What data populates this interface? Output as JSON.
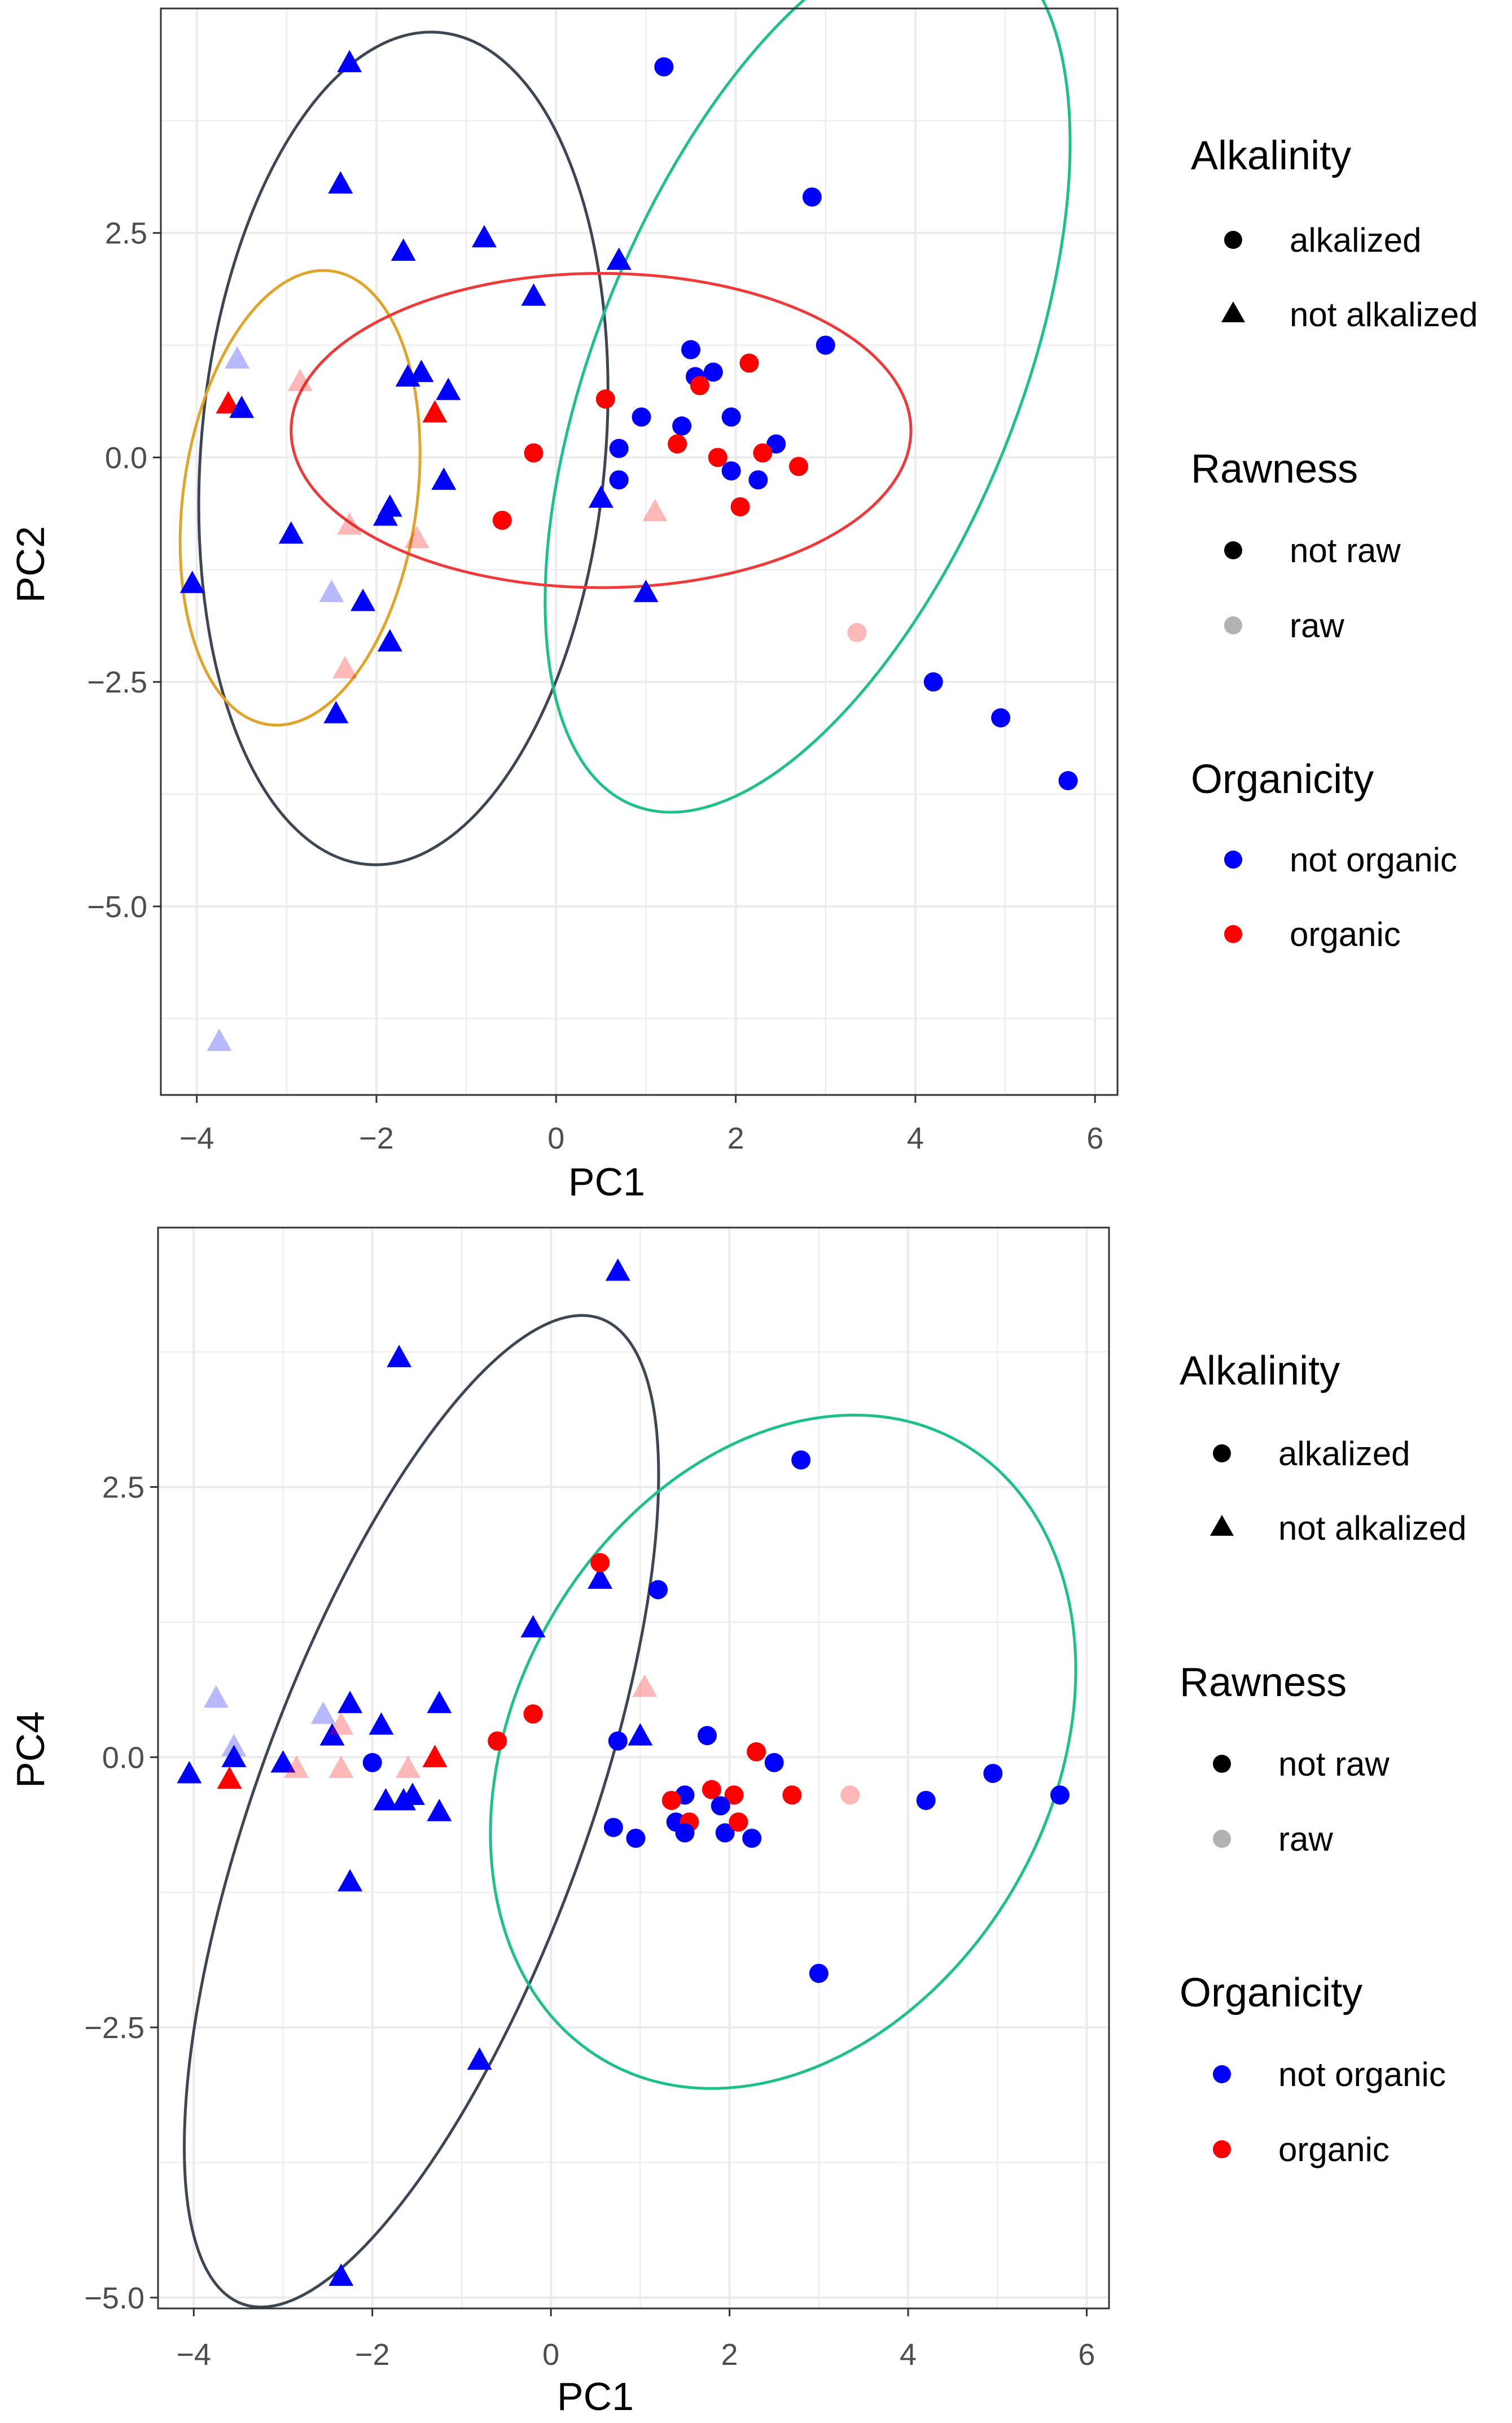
{
  "colors": {
    "not_organic": "#0000FF",
    "organic": "#FF0000",
    "ellipse_dark": "#3d4653",
    "ellipse_green": "#1ec08a",
    "ellipse_gold": "#e0a428",
    "ellipse_red": "#f03a3a",
    "grid": "#ebebeb",
    "panel_border": "#333333"
  },
  "chart_data": [
    {
      "type": "scatter",
      "xlabel": "PC1",
      "ylabel": "PC2",
      "xlim": [
        -4.4,
        6.25
      ],
      "ylim": [
        -7.1,
        5.0
      ],
      "xticks": [
        -4,
        -2,
        0,
        2,
        4,
        6
      ],
      "yticks": [
        -5.0,
        -2.5,
        0.0,
        2.5
      ],
      "xtick_labels": [
        "−4",
        "−2",
        "0",
        "2",
        "4",
        "6"
      ],
      "ytick_labels": [
        "−5.0",
        "−2.5",
        "0.0",
        "2.5"
      ],
      "grid": true,
      "ellipses": [
        {
          "color": "ellipse_dark",
          "cx": -1.7,
          "cy": 0.1,
          "rx": 2.25,
          "ry": 4.65,
          "angle": 5
        },
        {
          "color": "ellipse_green",
          "cx": 2.8,
          "cy": 0.95,
          "rx": 2.35,
          "ry": 5.2,
          "angle": 22
        },
        {
          "color": "ellipse_gold",
          "cx": -2.85,
          "cy": -0.45,
          "rx": 1.3,
          "ry": 2.55,
          "angle": 8
        },
        {
          "color": "ellipse_red",
          "cx": 0.5,
          "cy": 0.3,
          "rx": 3.45,
          "ry": 1.75,
          "angle": 0
        }
      ],
      "points": [
        {
          "x": -2.3,
          "y": 4.4,
          "alk": "not",
          "org": "not",
          "raw": "not"
        },
        {
          "x": -2.4,
          "y": 3.05,
          "alk": "not",
          "org": "not",
          "raw": "not"
        },
        {
          "x": -1.7,
          "y": 2.3,
          "alk": "not",
          "org": "not",
          "raw": "not"
        },
        {
          "x": -0.8,
          "y": 2.45,
          "alk": "not",
          "org": "not",
          "raw": "not"
        },
        {
          "x": 0.7,
          "y": 2.2,
          "alk": "not",
          "org": "not",
          "raw": "not"
        },
        {
          "x": -0.25,
          "y": 1.8,
          "alk": "not",
          "org": "not",
          "raw": "not"
        },
        {
          "x": -3.55,
          "y": 1.1,
          "alk": "not",
          "org": "not",
          "raw": "raw"
        },
        {
          "x": -2.85,
          "y": 0.85,
          "alk": "not",
          "org": "org",
          "raw": "raw"
        },
        {
          "x": -3.65,
          "y": 0.6,
          "alk": "not",
          "org": "org",
          "raw": "not"
        },
        {
          "x": -3.5,
          "y": 0.55,
          "alk": "not",
          "org": "not",
          "raw": "not"
        },
        {
          "x": -1.65,
          "y": 0.9,
          "alk": "not",
          "org": "not",
          "raw": "not"
        },
        {
          "x": -1.5,
          "y": 0.95,
          "alk": "not",
          "org": "not",
          "raw": "not"
        },
        {
          "x": -1.2,
          "y": 0.75,
          "alk": "not",
          "org": "not",
          "raw": "not"
        },
        {
          "x": -1.35,
          "y": 0.5,
          "alk": "not",
          "org": "org",
          "raw": "not"
        },
        {
          "x": -1.25,
          "y": -0.25,
          "alk": "not",
          "org": "not",
          "raw": "not"
        },
        {
          "x": -2.3,
          "y": -0.75,
          "alk": "not",
          "org": "org",
          "raw": "raw"
        },
        {
          "x": -1.9,
          "y": -0.65,
          "alk": "not",
          "org": "not",
          "raw": "not"
        },
        {
          "x": -1.85,
          "y": -0.55,
          "alk": "not",
          "org": "not",
          "raw": "not"
        },
        {
          "x": -1.55,
          "y": -0.9,
          "alk": "not",
          "org": "org",
          "raw": "raw"
        },
        {
          "x": -2.95,
          "y": -0.85,
          "alk": "not",
          "org": "not",
          "raw": "not"
        },
        {
          "x": -4.05,
          "y": -1.4,
          "alk": "not",
          "org": "not",
          "raw": "not"
        },
        {
          "x": -2.5,
          "y": -1.5,
          "alk": "not",
          "org": "not",
          "raw": "raw"
        },
        {
          "x": -2.15,
          "y": -1.6,
          "alk": "not",
          "org": "not",
          "raw": "not"
        },
        {
          "x": -1.85,
          "y": -2.05,
          "alk": "not",
          "org": "not",
          "raw": "not"
        },
        {
          "x": -2.35,
          "y": -2.35,
          "alk": "not",
          "org": "org",
          "raw": "raw"
        },
        {
          "x": -2.45,
          "y": -2.85,
          "alk": "not",
          "org": "not",
          "raw": "not"
        },
        {
          "x": -3.75,
          "y": -6.5,
          "alk": "not",
          "org": "not",
          "raw": "raw"
        },
        {
          "x": 0.5,
          "y": -0.45,
          "alk": "not",
          "org": "not",
          "raw": "not"
        },
        {
          "x": 1.1,
          "y": -0.6,
          "alk": "not",
          "org": "org",
          "raw": "raw"
        },
        {
          "x": 1.0,
          "y": -1.5,
          "alk": "not",
          "org": "not",
          "raw": "not"
        },
        {
          "x": 1.2,
          "y": 4.35,
          "alk": "alk",
          "org": "not",
          "raw": "not"
        },
        {
          "x": 2.85,
          "y": 2.9,
          "alk": "alk",
          "org": "not",
          "raw": "not"
        },
        {
          "x": 3.0,
          "y": 1.25,
          "alk": "alk",
          "org": "not",
          "raw": "not"
        },
        {
          "x": 1.5,
          "y": 1.2,
          "alk": "alk",
          "org": "not",
          "raw": "not"
        },
        {
          "x": 1.55,
          "y": 0.9,
          "alk": "alk",
          "org": "not",
          "raw": "not"
        },
        {
          "x": 1.75,
          "y": 0.95,
          "alk": "alk",
          "org": "not",
          "raw": "not"
        },
        {
          "x": 1.6,
          "y": 0.8,
          "alk": "alk",
          "org": "org",
          "raw": "not"
        },
        {
          "x": 2.15,
          "y": 1.05,
          "alk": "alk",
          "org": "org",
          "raw": "not"
        },
        {
          "x": 0.55,
          "y": 0.65,
          "alk": "alk",
          "org": "org",
          "raw": "not"
        },
        {
          "x": 0.95,
          "y": 0.45,
          "alk": "alk",
          "org": "not",
          "raw": "not"
        },
        {
          "x": 1.4,
          "y": 0.35,
          "alk": "alk",
          "org": "not",
          "raw": "not"
        },
        {
          "x": 1.95,
          "y": 0.45,
          "alk": "alk",
          "org": "not",
          "raw": "not"
        },
        {
          "x": 0.7,
          "y": 0.1,
          "alk": "alk",
          "org": "not",
          "raw": "not"
        },
        {
          "x": 1.35,
          "y": 0.15,
          "alk": "alk",
          "org": "org",
          "raw": "not"
        },
        {
          "x": 1.8,
          "y": 0.0,
          "alk": "alk",
          "org": "org",
          "raw": "not"
        },
        {
          "x": 2.45,
          "y": 0.15,
          "alk": "alk",
          "org": "not",
          "raw": "not"
        },
        {
          "x": 2.3,
          "y": 0.05,
          "alk": "alk",
          "org": "org",
          "raw": "not"
        },
        {
          "x": 2.7,
          "y": -0.1,
          "alk": "alk",
          "org": "org",
          "raw": "not"
        },
        {
          "x": 1.95,
          "y": -0.15,
          "alk": "alk",
          "org": "not",
          "raw": "not"
        },
        {
          "x": 2.25,
          "y": -0.25,
          "alk": "alk",
          "org": "not",
          "raw": "not"
        },
        {
          "x": 0.7,
          "y": -0.25,
          "alk": "alk",
          "org": "not",
          "raw": "not"
        },
        {
          "x": 2.05,
          "y": -0.55,
          "alk": "alk",
          "org": "org",
          "raw": "not"
        },
        {
          "x": -0.25,
          "y": 0.05,
          "alk": "alk",
          "org": "org",
          "raw": "not"
        },
        {
          "x": -0.6,
          "y": -0.7,
          "alk": "alk",
          "org": "org",
          "raw": "not"
        },
        {
          "x": 3.35,
          "y": -1.95,
          "alk": "alk",
          "org": "org",
          "raw": "raw"
        },
        {
          "x": 4.2,
          "y": -2.5,
          "alk": "alk",
          "org": "not",
          "raw": "not"
        },
        {
          "x": 4.95,
          "y": -2.9,
          "alk": "alk",
          "org": "not",
          "raw": "not"
        },
        {
          "x": 5.7,
          "y": -3.6,
          "alk": "alk",
          "org": "not",
          "raw": "not"
        }
      ]
    },
    {
      "type": "scatter",
      "xlabel": "PC1",
      "ylabel": "PC4",
      "xlim": [
        -4.4,
        6.25
      ],
      "ylim": [
        -5.1,
        4.9
      ],
      "xticks": [
        -4,
        -2,
        0,
        2,
        4,
        6
      ],
      "yticks": [
        -5.0,
        -2.5,
        0.0,
        2.5
      ],
      "xtick_labels": [
        "−4",
        "−2",
        "0",
        "2",
        "4",
        "6"
      ],
      "ytick_labels": [
        "−5.0",
        "−2.5",
        "0.0",
        "2.5"
      ],
      "grid": true,
      "ellipses": [
        {
          "color": "ellipse_dark",
          "cx": -1.45,
          "cy": -0.5,
          "rx": 1.85,
          "ry": 4.85,
          "angle": 20
        },
        {
          "color": "ellipse_green",
          "cx": 2.6,
          "cy": 0.05,
          "rx": 3.0,
          "ry": 3.3,
          "angle": 30
        }
      ],
      "points": [
        {
          "x": 0.75,
          "y": 4.5,
          "alk": "not",
          "org": "not",
          "raw": "not"
        },
        {
          "x": -1.7,
          "y": 3.7,
          "alk": "not",
          "org": "not",
          "raw": "not"
        },
        {
          "x": 0.55,
          "y": 1.65,
          "alk": "not",
          "org": "not",
          "raw": "not"
        },
        {
          "x": -0.2,
          "y": 1.2,
          "alk": "not",
          "org": "not",
          "raw": "not"
        },
        {
          "x": 1.05,
          "y": 0.65,
          "alk": "not",
          "org": "org",
          "raw": "raw"
        },
        {
          "x": -3.75,
          "y": 0.55,
          "alk": "not",
          "org": "not",
          "raw": "raw"
        },
        {
          "x": -2.55,
          "y": 0.4,
          "alk": "not",
          "org": "not",
          "raw": "raw"
        },
        {
          "x": -2.25,
          "y": 0.5,
          "alk": "not",
          "org": "not",
          "raw": "not"
        },
        {
          "x": -2.45,
          "y": 0.2,
          "alk": "not",
          "org": "not",
          "raw": "not"
        },
        {
          "x": -2.35,
          "y": 0.3,
          "alk": "not",
          "org": "org",
          "raw": "raw"
        },
        {
          "x": -1.9,
          "y": 0.3,
          "alk": "not",
          "org": "not",
          "raw": "not"
        },
        {
          "x": -1.25,
          "y": 0.5,
          "alk": "not",
          "org": "not",
          "raw": "not"
        },
        {
          "x": -3.55,
          "y": 0.1,
          "alk": "not",
          "org": "not",
          "raw": "raw"
        },
        {
          "x": -3.55,
          "y": 0.0,
          "alk": "not",
          "org": "not",
          "raw": "not"
        },
        {
          "x": -4.05,
          "y": -0.15,
          "alk": "not",
          "org": "not",
          "raw": "not"
        },
        {
          "x": -3.6,
          "y": -0.2,
          "alk": "not",
          "org": "org",
          "raw": "not"
        },
        {
          "x": -3.0,
          "y": -0.05,
          "alk": "not",
          "org": "not",
          "raw": "not"
        },
        {
          "x": -2.85,
          "y": -0.1,
          "alk": "not",
          "org": "org",
          "raw": "raw"
        },
        {
          "x": -2.35,
          "y": -0.1,
          "alk": "not",
          "org": "org",
          "raw": "raw"
        },
        {
          "x": -1.6,
          "y": -0.1,
          "alk": "not",
          "org": "org",
          "raw": "raw"
        },
        {
          "x": -1.3,
          "y": 0.0,
          "alk": "not",
          "org": "org",
          "raw": "not"
        },
        {
          "x": -1.85,
          "y": -0.4,
          "alk": "not",
          "org": "not",
          "raw": "not"
        },
        {
          "x": -1.65,
          "y": -0.4,
          "alk": "not",
          "org": "not",
          "raw": "not"
        },
        {
          "x": -1.55,
          "y": -0.35,
          "alk": "not",
          "org": "not",
          "raw": "not"
        },
        {
          "x": -1.25,
          "y": -0.5,
          "alk": "not",
          "org": "not",
          "raw": "not"
        },
        {
          "x": -2.25,
          "y": -1.15,
          "alk": "not",
          "org": "not",
          "raw": "not"
        },
        {
          "x": -0.8,
          "y": -2.8,
          "alk": "not",
          "org": "not",
          "raw": "not"
        },
        {
          "x": -2.35,
          "y": -4.8,
          "alk": "not",
          "org": "not",
          "raw": "not"
        },
        {
          "x": 1.0,
          "y": 0.2,
          "alk": "not",
          "org": "not",
          "raw": "not"
        },
        {
          "x": 2.8,
          "y": 2.75,
          "alk": "alk",
          "org": "not",
          "raw": "not"
        },
        {
          "x": 0.55,
          "y": 1.8,
          "alk": "alk",
          "org": "org",
          "raw": "not"
        },
        {
          "x": 1.2,
          "y": 1.55,
          "alk": "alk",
          "org": "not",
          "raw": "not"
        },
        {
          "x": -0.6,
          "y": 0.15,
          "alk": "alk",
          "org": "org",
          "raw": "not"
        },
        {
          "x": -0.2,
          "y": 0.4,
          "alk": "alk",
          "org": "org",
          "raw": "not"
        },
        {
          "x": -2.0,
          "y": -0.05,
          "alk": "alk",
          "org": "not",
          "raw": "not"
        },
        {
          "x": 0.75,
          "y": 0.15,
          "alk": "alk",
          "org": "not",
          "raw": "not"
        },
        {
          "x": 1.75,
          "y": 0.2,
          "alk": "alk",
          "org": "not",
          "raw": "not"
        },
        {
          "x": 2.3,
          "y": 0.05,
          "alk": "alk",
          "org": "org",
          "raw": "not"
        },
        {
          "x": 2.5,
          "y": -0.05,
          "alk": "alk",
          "org": "not",
          "raw": "not"
        },
        {
          "x": 1.8,
          "y": -0.3,
          "alk": "alk",
          "org": "org",
          "raw": "not"
        },
        {
          "x": 2.05,
          "y": -0.35,
          "alk": "alk",
          "org": "org",
          "raw": "not"
        },
        {
          "x": 1.5,
          "y": -0.35,
          "alk": "alk",
          "org": "not",
          "raw": "not"
        },
        {
          "x": 1.35,
          "y": -0.4,
          "alk": "alk",
          "org": "org",
          "raw": "not"
        },
        {
          "x": 1.9,
          "y": -0.45,
          "alk": "alk",
          "org": "not",
          "raw": "not"
        },
        {
          "x": 2.7,
          "y": -0.35,
          "alk": "alk",
          "org": "org",
          "raw": "not"
        },
        {
          "x": 3.35,
          "y": -0.35,
          "alk": "alk",
          "org": "org",
          "raw": "raw"
        },
        {
          "x": 4.2,
          "y": -0.4,
          "alk": "alk",
          "org": "not",
          "raw": "not"
        },
        {
          "x": 4.95,
          "y": -0.15,
          "alk": "alk",
          "org": "not",
          "raw": "not"
        },
        {
          "x": 5.7,
          "y": -0.35,
          "alk": "alk",
          "org": "not",
          "raw": "not"
        },
        {
          "x": 1.4,
          "y": -0.6,
          "alk": "alk",
          "org": "not",
          "raw": "not"
        },
        {
          "x": 1.55,
          "y": -0.6,
          "alk": "alk",
          "org": "org",
          "raw": "not"
        },
        {
          "x": 1.5,
          "y": -0.7,
          "alk": "alk",
          "org": "not",
          "raw": "not"
        },
        {
          "x": 1.95,
          "y": -0.7,
          "alk": "alk",
          "org": "not",
          "raw": "not"
        },
        {
          "x": 2.1,
          "y": -0.6,
          "alk": "alk",
          "org": "org",
          "raw": "not"
        },
        {
          "x": 2.25,
          "y": -0.75,
          "alk": "alk",
          "org": "not",
          "raw": "not"
        },
        {
          "x": 0.7,
          "y": -0.65,
          "alk": "alk",
          "org": "not",
          "raw": "not"
        },
        {
          "x": 0.95,
          "y": -0.75,
          "alk": "alk",
          "org": "not",
          "raw": "not"
        },
        {
          "x": 3.0,
          "y": -2.0,
          "alk": "alk",
          "org": "not",
          "raw": "not"
        }
      ]
    }
  ],
  "legends": [
    {
      "alkalinity": {
        "title": "Alkalinity",
        "alkalized": "alkalized",
        "not_alkalized": "not alkalized"
      },
      "rawness": {
        "title": "Rawness",
        "not_raw": "not raw",
        "raw": "raw"
      },
      "organicity": {
        "title": "Organicity",
        "not_organic": "not organic",
        "organic": "organic"
      }
    },
    {
      "alkalinity": {
        "title": "Alkalinity",
        "alkalized": "alkalized",
        "not_alkalized": "not alkalized"
      },
      "rawness": {
        "title": "Rawness",
        "not_raw": "not raw",
        "raw": "raw"
      },
      "organicity": {
        "title": "Organicity",
        "not_organic": "not organic",
        "organic": "organic"
      }
    }
  ]
}
